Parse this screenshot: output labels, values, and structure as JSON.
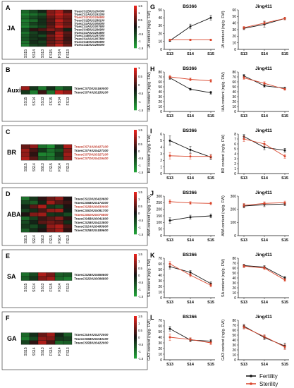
{
  "chart_data": [
    {
      "type": "heatmap",
      "panel": "A",
      "row_label": "JA",
      "columns": [
        "SS15",
        "SS14",
        "SS13",
        "FS15",
        "FS14",
        "FS13"
      ],
      "genes": [
        "TraesCS1B02G200000",
        "TraesCS1A02G193200",
        "TraesCS1D02G196900",
        "TraesCS1B02G288100",
        "TraesCS4A02G008000",
        "TraesCS4A02G007600",
        "TraesCS4B02G296900",
        "TraesCS4A02G293800",
        "TraesCS4B02G297000",
        "TraesCS4A02G007800",
        "TraesCS4D02G295900",
        "TraesCS4D02G296000"
      ],
      "gene_colors": [
        "#1a1a1a",
        "#1a1a1a",
        "#c0392b",
        "#1a1a1a",
        "#1a1a1a",
        "#1a1a1a",
        "#1a1a1a",
        "#1a1a1a",
        "#1a1a1a",
        "#1a1a1a",
        "#1a1a1a",
        "#1a1a1a"
      ],
      "values": [
        [
          -0.9,
          -0.6,
          -0.2,
          0.8,
          1.1,
          0.4
        ],
        [
          -1.2,
          -1.0,
          -0.7,
          0.9,
          1.3,
          0.9
        ],
        [
          -0.9,
          -0.6,
          -0.4,
          0.6,
          1.0,
          0.7
        ],
        [
          -1.1,
          -0.9,
          -0.3,
          0.5,
          1.2,
          0.7
        ],
        [
          -1.0,
          -0.5,
          -0.3,
          0.4,
          1.0,
          0.6
        ],
        [
          -1.2,
          -0.8,
          -0.5,
          0.6,
          1.3,
          0.8
        ],
        [
          -0.6,
          0.2,
          0.4,
          0.8,
          0.6,
          -0.2
        ],
        [
          -1.0,
          -0.5,
          -0.2,
          0.3,
          1.1,
          0.5
        ],
        [
          -0.8,
          -0.4,
          -0.6,
          0.7,
          1.2,
          0.4
        ],
        [
          -0.7,
          -0.4,
          -0.2,
          0.5,
          1.0,
          0.3
        ],
        [
          -1.0,
          -0.3,
          -0.5,
          0.6,
          0.9,
          0.4
        ],
        [
          -1.1,
          -0.5,
          -0.4,
          0.7,
          1.2,
          0.6
        ]
      ],
      "scale_ticks": [
        "1.5",
        "1",
        "0.5",
        "0",
        "-0.5",
        "-1",
        "-1.5"
      ]
    },
    {
      "type": "heatmap",
      "panel": "B",
      "row_label": "Auxin",
      "columns": [
        "SS15",
        "SS14",
        "SS13",
        "FS15",
        "FS14",
        "FS13"
      ],
      "genes": [
        "TraesCS7D02G160000",
        "TraesCS7A02G159100"
      ],
      "gene_colors": [
        "#1a1a1a",
        "#1a1a1a"
      ],
      "values": [
        [
          1.0,
          -0.4,
          -1.1,
          -0.3,
          -1.0,
          -0.6
        ],
        [
          -0.4,
          -1.1,
          0.3,
          -1.0,
          1.2,
          0.9
        ]
      ],
      "scale_ticks": [
        "1",
        "0.5",
        "0",
        "-0.5",
        "-1",
        "-1.5"
      ]
    },
    {
      "type": "heatmap",
      "panel": "C",
      "row_label": "BR",
      "columns": [
        "SS15",
        "SS14",
        "SS13",
        "FS15",
        "FS14",
        "FS13"
      ],
      "genes": [
        "TraesCS7A02G427100",
        "TraesCS7A02G427300",
        "TraesCS7D02G327100",
        "TraesCS7D02G419400"
      ],
      "gene_colors": [
        "#c0392b",
        "#1a1a1a",
        "#c0392b",
        "#c0392b"
      ],
      "values": [
        [
          0.6,
          0.9,
          -1.0,
          -1.3,
          -0.4,
          1.1
        ],
        [
          1.0,
          0.4,
          -0.4,
          -1.0,
          -0.7,
          0.8
        ],
        [
          0.9,
          0.2,
          -1.2,
          -1.1,
          -0.4,
          1.0
        ],
        [
          1.1,
          0.5,
          -0.8,
          -1.0,
          -0.6,
          0.9
        ]
      ],
      "scale_ticks": [
        "1.5",
        "1",
        "0.5",
        "0",
        "-0.5",
        "-1",
        "-1.5"
      ]
    },
    {
      "type": "heatmap",
      "panel": "D",
      "row_label": "ABA",
      "columns": [
        "SS15",
        "SS14",
        "SS13",
        "FS15",
        "FS14",
        "FS13"
      ],
      "genes": [
        "TraesCS1D02G410600",
        "TraesCS5B02G174300",
        "TraesCS2B02G630000",
        "TraesCS5D02G081700",
        "TraesCS5D02G075800",
        "TraesCS4B02G041800",
        "TraesCS2B02G413800",
        "TraesCS2A02G493900",
        "TraesCS2B02G189600"
      ],
      "gene_colors": [
        "#1a1a1a",
        "#1a1a1a",
        "#c0392b",
        "#1a1a1a",
        "#c0392b",
        "#1a1a1a",
        "#1a1a1a",
        "#1a1a1a",
        "#1a1a1a"
      ],
      "values": [
        [
          -1.0,
          -0.4,
          0.2,
          0.6,
          0.9,
          0.1
        ],
        [
          -0.6,
          -0.8,
          -0.2,
          1.0,
          0.5,
          0.3
        ],
        [
          -0.2,
          0.5,
          1.1,
          -0.4,
          -0.6,
          0.1
        ],
        [
          -0.5,
          -0.3,
          0.4,
          0.9,
          1.0,
          -0.1
        ],
        [
          0.1,
          0.8,
          1.0,
          -0.4,
          -0.3,
          -0.6
        ],
        [
          -0.9,
          -0.5,
          0.3,
          0.5,
          0.8,
          0.2
        ],
        [
          -0.6,
          -0.2,
          0.5,
          0.7,
          0.5,
          -0.3
        ],
        [
          -0.4,
          -0.6,
          -0.2,
          0.9,
          1.1,
          0.4
        ],
        [
          -0.8,
          -0.3,
          0.1,
          0.7,
          1.0,
          0.2
        ]
      ],
      "scale_ticks": [
        "1.5",
        "1",
        "0.5",
        "0",
        "-0.5",
        "-1",
        "-1.5"
      ]
    },
    {
      "type": "heatmap",
      "panel": "E",
      "row_label": "SA",
      "columns": [
        "SS15",
        "SS14",
        "SS13",
        "FS15",
        "FS14",
        "FS13"
      ],
      "genes": [
        "TraesCS2B02G556600",
        "TraesCS2D02G096800"
      ],
      "gene_colors": [
        "#1a1a1a",
        "#1a1a1a"
      ],
      "values": [
        [
          -1.0,
          -0.6,
          1.1,
          0.7,
          -0.8,
          -0.7
        ],
        [
          -0.8,
          -0.4,
          0.8,
          1.0,
          -0.9,
          -1.1
        ]
      ],
      "scale_ticks": [
        "1.5",
        "1",
        "0.5",
        "0",
        "-0.5",
        "-1",
        "-1.5"
      ]
    },
    {
      "type": "heatmap",
      "panel": "F",
      "row_label": "GA",
      "columns": [
        "SS15",
        "SS14",
        "SS13",
        "FS15",
        "FS14",
        "FS13"
      ],
      "genes": [
        "TraesCS4A02G272000",
        "TraesCS6B02G043100",
        "TraesCS5B02G422000"
      ],
      "gene_colors": [
        "#1a1a1a",
        "#1a1a1a",
        "#1a1a1a"
      ],
      "values": [
        [
          -0.9,
          -0.3,
          0.6,
          1.0,
          -0.2,
          -0.8
        ],
        [
          -1.1,
          -0.6,
          0.9,
          0.8,
          -0.4,
          -0.5
        ],
        [
          -0.5,
          0.2,
          1.1,
          0.4,
          -0.9,
          -0.8
        ]
      ],
      "scale_ticks": [
        "1.5",
        "1",
        "0.5",
        "0",
        "-0.5",
        "-1",
        "-1.5"
      ]
    },
    {
      "type": "line",
      "panel": "G",
      "ylabel": "JA content (ng/g. FW)",
      "categories": [
        "S13",
        "S14",
        "S15"
      ],
      "subplots": [
        {
          "title": "BS366",
          "ylim": [
            0,
            50
          ],
          "yticks": [
            0,
            10,
            20,
            30,
            40,
            50
          ],
          "series": [
            {
              "name": "Fertility",
              "values": [
                11,
                29,
                40
              ],
              "err": [
                1,
                3,
                3
              ]
            },
            {
              "name": "Sterility",
              "values": [
                12,
                12,
                12
              ],
              "err": [
                1,
                1,
                1
              ]
            }
          ]
        },
        {
          "title": "Jing411",
          "ylim": [
            0,
            60
          ],
          "yticks": [
            0,
            10,
            20,
            30,
            40,
            50,
            60
          ],
          "series": [
            {
              "name": "Fertility",
              "values": [
                32,
                38,
                47
              ],
              "err": [
                2,
                4,
                2
              ]
            },
            {
              "name": "Sterility",
              "values": [
                33,
                40,
                47
              ],
              "err": [
                2,
                3,
                2
              ]
            }
          ]
        }
      ]
    },
    {
      "type": "line",
      "panel": "H",
      "ylabel": "IAA content (ng/g. FW)",
      "categories": [
        "S13",
        "S14",
        "S15"
      ],
      "subplots": [
        {
          "title": "BS366",
          "ylim": [
            0,
            80
          ],
          "yticks": [
            0,
            10,
            20,
            30,
            40,
            50,
            60,
            70,
            80
          ],
          "series": [
            {
              "name": "Fertility",
              "values": [
                68,
                45,
                38
              ],
              "err": [
                3,
                2,
                3
              ]
            },
            {
              "name": "Sterility",
              "values": [
                70,
                65,
                62
              ],
              "err": [
                3,
                3,
                3
              ]
            }
          ]
        },
        {
          "title": "Jing411",
          "ylim": [
            0,
            80
          ],
          "yticks": [
            0,
            10,
            20,
            30,
            40,
            50,
            60,
            70,
            80
          ],
          "series": [
            {
              "name": "Fertility",
              "values": [
                72,
                52,
                47
              ],
              "err": [
                3,
                3,
                2
              ]
            },
            {
              "name": "Sterility",
              "values": [
                68,
                57,
                45
              ],
              "err": [
                3,
                3,
                2
              ]
            }
          ]
        }
      ]
    },
    {
      "type": "line",
      "panel": "I",
      "ylabel": "BR content (ng/g. FW)",
      "categories": [
        "S13",
        "S14",
        "S15"
      ],
      "subplots": [
        {
          "title": "BS366",
          "ylim": [
            0,
            6
          ],
          "yticks": [
            0,
            1,
            2,
            3,
            4,
            5,
            6
          ],
          "series": [
            {
              "name": "Fertility",
              "values": [
                5.0,
                3.6,
                2.5
              ],
              "err": [
                0.7,
                0.5,
                0.4
              ]
            },
            {
              "name": "Sterility",
              "values": [
                2.7,
                2.6,
                2.6
              ],
              "err": [
                0.5,
                0.4,
                0.3
              ]
            }
          ]
        },
        {
          "title": "Jing411",
          "ylim": [
            0,
            8
          ],
          "yticks": [
            0,
            1,
            2,
            3,
            4,
            5,
            6,
            7,
            8
          ],
          "series": [
            {
              "name": "Fertility",
              "values": [
                7.5,
                5.3,
                4.7
              ],
              "err": [
                0.4,
                0.5,
                0.4
              ]
            },
            {
              "name": "Sterility",
              "values": [
                7.0,
                6.0,
                3.5
              ],
              "err": [
                0.5,
                0.5,
                0.4
              ]
            }
          ]
        }
      ]
    },
    {
      "type": "line",
      "panel": "J",
      "ylabel": "ABA content (ng/g. FW)",
      "categories": [
        "S13",
        "S14",
        "S15"
      ],
      "subplots": [
        {
          "title": "BS366",
          "ylim": [
            0,
            300
          ],
          "yticks": [
            0,
            50,
            100,
            150,
            200,
            250,
            300
          ],
          "series": [
            {
              "name": "Fertility",
              "values": [
                115,
                140,
                150
              ],
              "err": [
                20,
                15,
                15
              ]
            },
            {
              "name": "Sterility",
              "values": [
                258,
                248,
                245
              ],
              "err": [
                15,
                10,
                10
              ]
            }
          ]
        },
        {
          "title": "Jing411",
          "ylim": [
            0,
            300
          ],
          "yticks": [
            0,
            100,
            200,
            300
          ],
          "series": [
            {
              "name": "Fertility",
              "values": [
                225,
                235,
                240
              ],
              "err": [
                15,
                15,
                12
              ]
            },
            {
              "name": "Sterility",
              "values": [
                230,
                245,
                250
              ],
              "err": [
                15,
                12,
                12
              ]
            }
          ]
        }
      ]
    },
    {
      "type": "line",
      "panel": "K",
      "ylabel": "SA content (ng/g. FW)",
      "categories": [
        "S13",
        "S14",
        "S15"
      ],
      "subplots": [
        {
          "title": "BS366",
          "ylim": [
            0,
            70
          ],
          "yticks": [
            0,
            10,
            20,
            30,
            40,
            50,
            60,
            70
          ],
          "series": [
            {
              "name": "Fertility",
              "values": [
                55,
                45,
                25
              ],
              "err": [
                4,
                3,
                3
              ]
            },
            {
              "name": "Sterility",
              "values": [
                60,
                40,
                22
              ],
              "err": [
                4,
                3,
                3
              ]
            }
          ]
        },
        {
          "title": "Jing411",
          "ylim": [
            0,
            80
          ],
          "yticks": [
            0,
            10,
            20,
            30,
            40,
            50,
            60,
            70,
            80
          ],
          "series": [
            {
              "name": "Fertility",
              "values": [
                65,
                62,
                40
              ],
              "err": [
                3,
                3,
                3
              ]
            },
            {
              "name": "Sterility",
              "values": [
                64,
                60,
                36
              ],
              "err": [
                3,
                3,
                3
              ]
            }
          ]
        }
      ]
    },
    {
      "type": "line",
      "panel": "L",
      "ylabel": "GA3 content (ng/g. FW)",
      "categories": [
        "S13",
        "S14",
        "S15"
      ],
      "subplots": [
        {
          "title": "BS366",
          "ylim": [
            0,
            70
          ],
          "yticks": [
            0,
            10,
            20,
            30,
            40,
            50,
            60,
            70
          ],
          "series": [
            {
              "name": "Fertility",
              "values": [
                55,
                35,
                33
              ],
              "err": [
                4,
                3,
                3
              ]
            },
            {
              "name": "Sterility",
              "values": [
                40,
                36,
                30
              ],
              "err": [
                6,
                3,
                3
              ]
            }
          ]
        },
        {
          "title": "Jing411",
          "ylim": [
            0,
            80
          ],
          "yticks": [
            0,
            10,
            20,
            30,
            40,
            50,
            60,
            70,
            80
          ],
          "series": [
            {
              "name": "Fertility",
              "values": [
                68,
                45,
                28
              ],
              "err": [
                4,
                4,
                6
              ]
            },
            {
              "name": "Sterility",
              "values": [
                66,
                47,
                26
              ],
              "err": [
                4,
                4,
                5
              ]
            }
          ]
        }
      ]
    }
  ],
  "legend": {
    "items": [
      {
        "label": "Fertility",
        "color": "#111111"
      },
      {
        "label": "Sterility",
        "color": "#d9452b"
      }
    ]
  },
  "colors": {
    "high": "#e5221c",
    "mid": "#111111",
    "low": "#21a038",
    "fertility": "#111111",
    "sterility": "#d9452b"
  }
}
